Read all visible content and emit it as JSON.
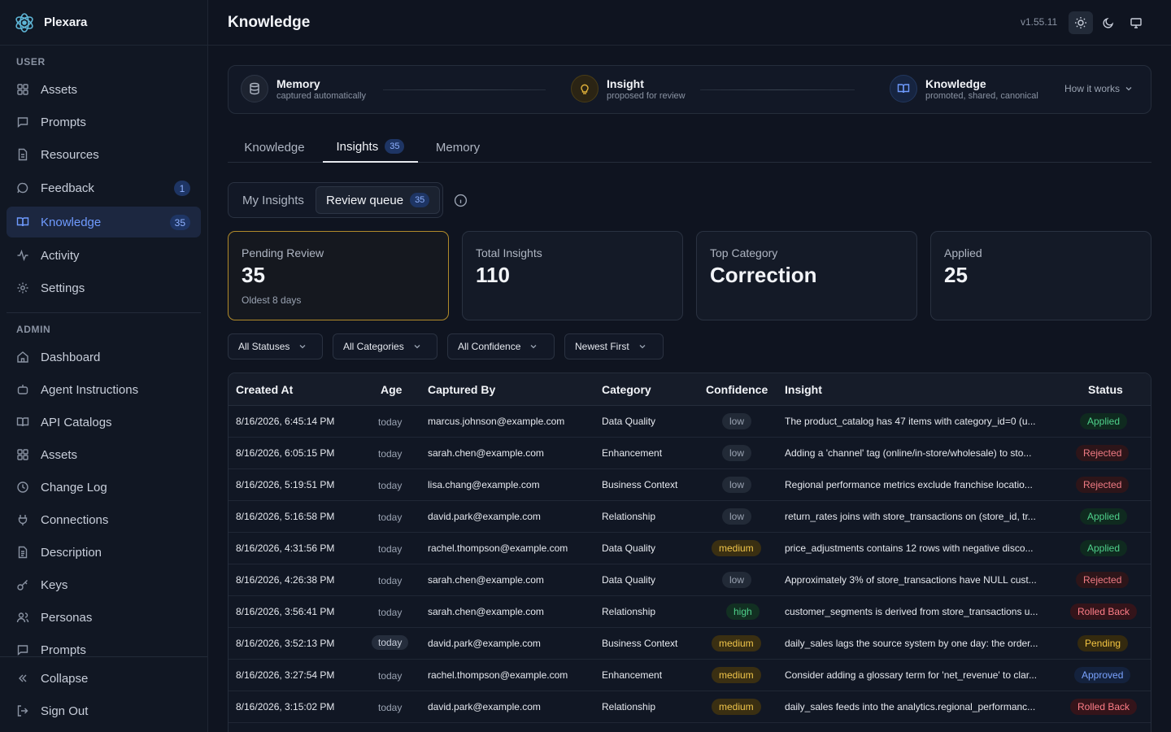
{
  "app": {
    "name": "Plexara"
  },
  "sidebar": {
    "user_label": "USER",
    "admin_label": "ADMIN",
    "user_items": [
      {
        "label": "Assets",
        "icon": "grid-icon"
      },
      {
        "label": "Prompts",
        "icon": "message-square-icon"
      },
      {
        "label": "Resources",
        "icon": "file-icon"
      },
      {
        "label": "Feedback",
        "icon": "message-circle-icon",
        "badge": "1"
      },
      {
        "label": "Knowledge",
        "icon": "book-open-icon",
        "badge": "35",
        "active": true
      },
      {
        "label": "Activity",
        "icon": "activity-icon"
      },
      {
        "label": "Settings",
        "icon": "gear-icon"
      }
    ],
    "admin_items": [
      {
        "label": "Dashboard",
        "icon": "home-icon"
      },
      {
        "label": "Agent Instructions",
        "icon": "bot-icon"
      },
      {
        "label": "API Catalogs",
        "icon": "book-open-icon"
      },
      {
        "label": "Assets",
        "icon": "grid-icon"
      },
      {
        "label": "Change Log",
        "icon": "clock-icon"
      },
      {
        "label": "Connections",
        "icon": "plug-icon"
      },
      {
        "label": "Description",
        "icon": "file-text-icon"
      },
      {
        "label": "Keys",
        "icon": "key-icon"
      },
      {
        "label": "Personas",
        "icon": "users-icon"
      },
      {
        "label": "Prompts",
        "icon": "message-square-icon"
      }
    ],
    "collapse_label": "Collapse",
    "signout_label": "Sign Out"
  },
  "header": {
    "title": "Knowledge",
    "version": "v1.55.11"
  },
  "lifecycle": {
    "memory": {
      "title": "Memory",
      "subtitle": "captured automatically"
    },
    "insight": {
      "title": "Insight",
      "subtitle": "proposed for review"
    },
    "knowledge": {
      "title": "Knowledge",
      "subtitle": "promoted, shared, canonical"
    },
    "how_label": "How it works"
  },
  "tabs": [
    {
      "label": "Knowledge"
    },
    {
      "label": "Insights",
      "badge": "35",
      "active": true
    },
    {
      "label": "Memory"
    }
  ],
  "segment": {
    "my_label": "My Insights",
    "queue_label": "Review queue",
    "queue_badge": "35"
  },
  "stats": [
    {
      "label": "Pending Review",
      "value": "35",
      "sub": "Oldest 8 days"
    },
    {
      "label": "Total Insights",
      "value": "110"
    },
    {
      "label": "Top Category",
      "value": "Correction"
    },
    {
      "label": "Applied",
      "value": "25"
    }
  ],
  "filters": [
    "All Statuses",
    "All Categories",
    "All Confidence",
    "Newest First"
  ],
  "table": {
    "headers": [
      "Created At",
      "Age",
      "Captured By",
      "Category",
      "Confidence",
      "Insight",
      "Status"
    ],
    "rows": [
      {
        "created": "8/16/2026, 6:45:14 PM",
        "age": "today",
        "by": "marcus.johnson@example.com",
        "category": "Data Quality",
        "confidence": "low",
        "insight": "The product_catalog has 47 items with category_id=0 (u...",
        "status": "Applied"
      },
      {
        "created": "8/16/2026, 6:05:15 PM",
        "age": "today",
        "by": "sarah.chen@example.com",
        "category": "Enhancement",
        "confidence": "low",
        "insight": "Adding a 'channel' tag (online/in-store/wholesale) to sto...",
        "status": "Rejected"
      },
      {
        "created": "8/16/2026, 5:19:51 PM",
        "age": "today",
        "by": "lisa.chang@example.com",
        "category": "Business Context",
        "confidence": "low",
        "insight": "Regional performance metrics exclude franchise locatio...",
        "status": "Rejected"
      },
      {
        "created": "8/16/2026, 5:16:58 PM",
        "age": "today",
        "by": "david.park@example.com",
        "category": "Relationship",
        "confidence": "low",
        "insight": "return_rates joins with store_transactions on (store_id, tr...",
        "status": "Applied"
      },
      {
        "created": "8/16/2026, 4:31:56 PM",
        "age": "today",
        "by": "rachel.thompson@example.com",
        "category": "Data Quality",
        "confidence": "medium",
        "insight": "price_adjustments contains 12 rows with negative disco...",
        "status": "Applied"
      },
      {
        "created": "8/16/2026, 4:26:38 PM",
        "age": "today",
        "by": "sarah.chen@example.com",
        "category": "Data Quality",
        "confidence": "low",
        "insight": "Approximately 3% of store_transactions have NULL cust...",
        "status": "Rejected"
      },
      {
        "created": "8/16/2026, 3:56:41 PM",
        "age": "today",
        "by": "sarah.chen@example.com",
        "category": "Relationship",
        "confidence": "high",
        "insight": "customer_segments is derived from store_transactions u...",
        "status": "Rolled Back"
      },
      {
        "created": "8/16/2026, 3:52:13 PM",
        "age": "today",
        "by": "david.park@example.com",
        "category": "Business Context",
        "confidence": "medium",
        "insight": "daily_sales lags the source system by one day: the order...",
        "status": "Pending"
      },
      {
        "created": "8/16/2026, 3:27:54 PM",
        "age": "today",
        "by": "rachel.thompson@example.com",
        "category": "Enhancement",
        "confidence": "medium",
        "insight": "Consider adding a glossary term for 'net_revenue' to clar...",
        "status": "Approved"
      },
      {
        "created": "8/16/2026, 3:15:02 PM",
        "age": "today",
        "by": "david.park@example.com",
        "category": "Relationship",
        "confidence": "medium",
        "insight": "daily_sales feeds into the analytics.regional_performanc...",
        "status": "Rolled Back"
      }
    ]
  }
}
